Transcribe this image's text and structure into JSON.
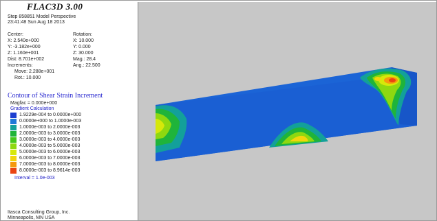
{
  "app_title": "FLAC3D 3.00",
  "header": {
    "step_line": "Step 858851  Model Perspective",
    "time_line": "23:41:48 Sun Aug 18 2013"
  },
  "view": {
    "center_label": "Center:",
    "center_x": "X: 2.540e+000",
    "center_y": "Y: -3.182e+000",
    "center_z": "Z: 1.160e+001",
    "dist": "Dist: 8.701e+002",
    "rotation_label": "Rotation:",
    "rot_x": "X:  10.000",
    "rot_y": "Y:   0.000",
    "rot_z": "Z:  30.000",
    "mag": "Mag.:    28.4",
    "ang": "Ang.:  22.500",
    "increments_label": "Increments:",
    "move": "Move:  2.288e+001",
    "rot": "Rot.:  10.000"
  },
  "contour": {
    "title": "Contour of Shear Strain Increment",
    "magfac": "Magfac = 0.000e+000",
    "calc": "Gradient Calculation",
    "ranges": [
      {
        "label": "1.9229e-004 to  0.0000e+000",
        "color": "#1c3fd0"
      },
      {
        "label": "0.0000e+000 to  1.0000e-003",
        "color": "#1f78d8"
      },
      {
        "label": "1.0000e-003 to  2.0000e-003",
        "color": "#13a09a"
      },
      {
        "label": "2.0000e-003 to  3.0000e-003",
        "color": "#1fb43a"
      },
      {
        "label": "3.0000e-003 to  4.0000e-003",
        "color": "#45c81c"
      },
      {
        "label": "4.0000e-003 to  5.0000e-003",
        "color": "#8ed810"
      },
      {
        "label": "5.0000e-003 to  6.0000e-003",
        "color": "#d6e80a"
      },
      {
        "label": "6.0000e-003 to  7.0000e-003",
        "color": "#f2d50c"
      },
      {
        "label": "7.0000e-003 to  8.0000e-003",
        "color": "#f59a0e"
      },
      {
        "label": "8.0000e-003 to  8.9614e-003",
        "color": "#ea4412"
      }
    ],
    "interval": "Interval = 1.0e-003"
  },
  "footer": {
    "company": "Itasca Consulting Group, Inc.",
    "location": "Minneapolis, MN  USA"
  },
  "model_colors": {
    "front": "#1a5fd3",
    "top": "#1b64d6",
    "side": "#1756c8"
  }
}
